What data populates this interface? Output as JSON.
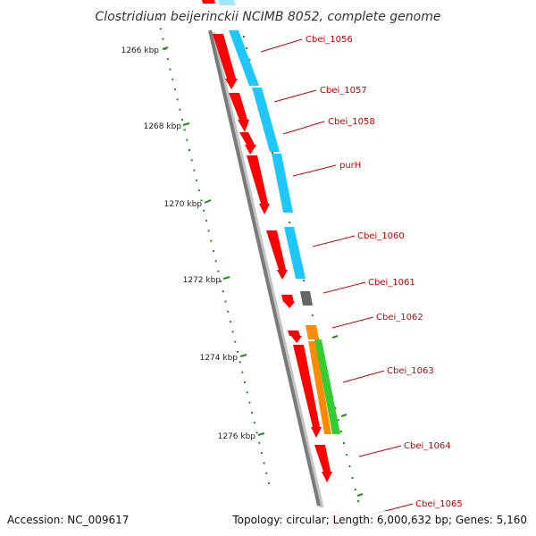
{
  "title": "Clostridium beijerinckii NCIMB 8052, complete genome",
  "footer": {
    "accession": "Accession: NC_009617",
    "summary": "Topology: circular; Length: 6,000,632 bp; Genes: 5,160"
  },
  "colors": {
    "cds": "#ff0000",
    "cog": "#1ec8ff",
    "label": "#cc0000",
    "scale": "#228b22",
    "backbone": "#808080"
  },
  "kbp_labels": [
    "1266 kbp",
    "1268 kbp",
    "1270 kbp",
    "1272 kbp",
    "1274 kbp",
    "1276 kbp"
  ],
  "genes": [
    "Cbei_1056",
    "Cbei_1057",
    "Cbei_1058",
    "purH",
    "Cbei_1060",
    "Cbei_1061",
    "Cbei_1062",
    "Cbei_1063",
    "Cbei_1064",
    "Cbei_1065"
  ]
}
